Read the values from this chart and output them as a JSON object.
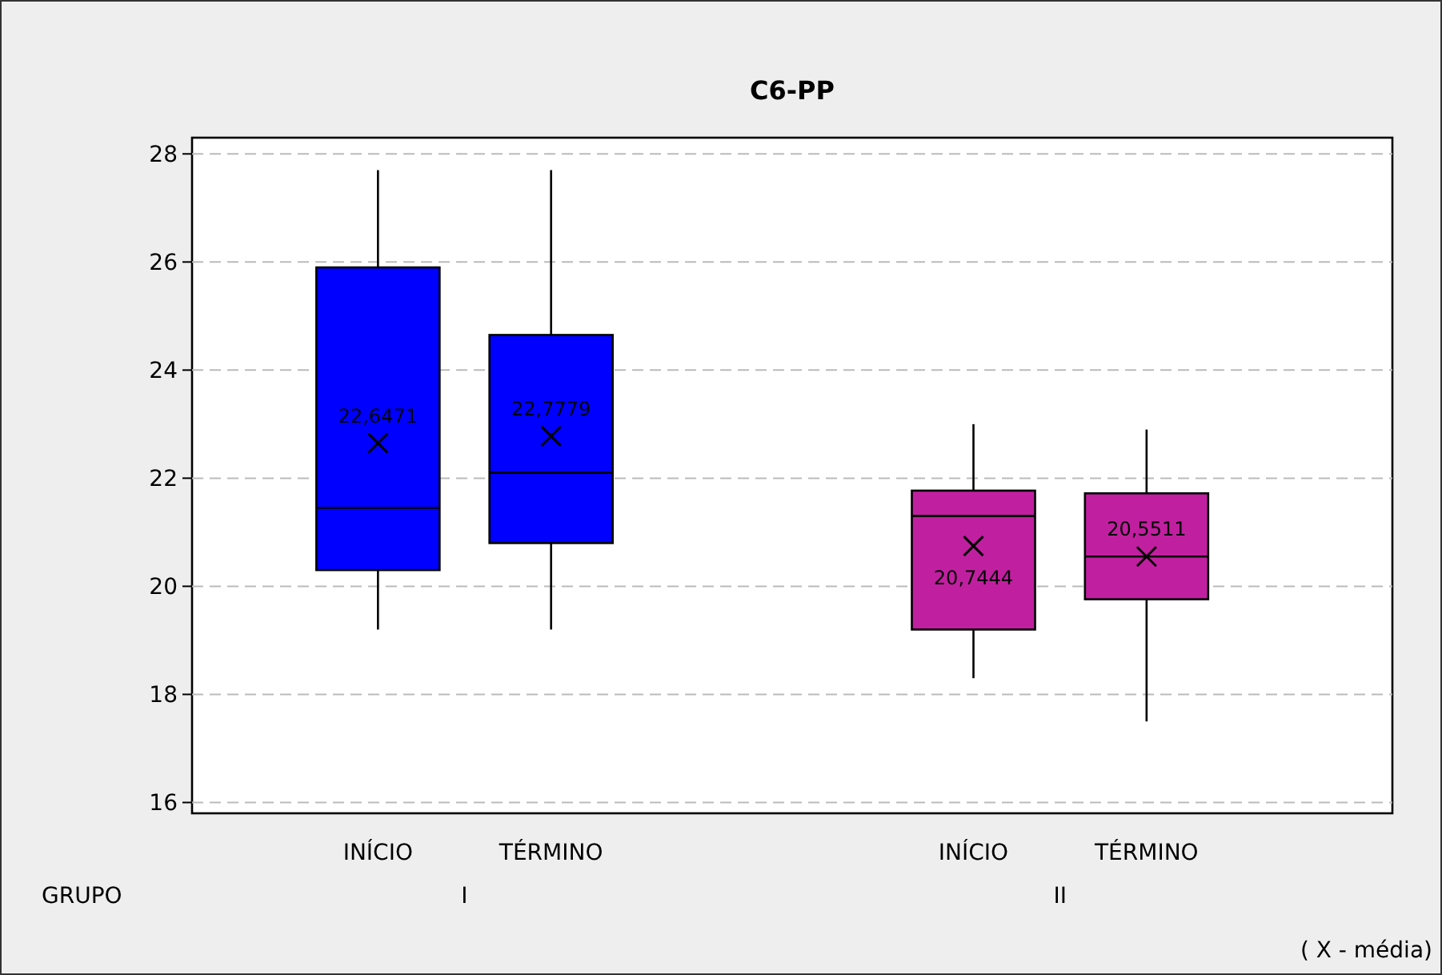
{
  "chart_data": {
    "type": "box",
    "title": "C6-PP",
    "xlabel": "GRUPO",
    "categories": [
      "INÍCIO",
      "TÉRMINO",
      "INÍCIO",
      "TÉRMINO"
    ],
    "series": [
      {
        "color": "#0000ff",
        "boxes": [
          {
            "low": 19.2,
            "q1": 20.3,
            "median": 21.45,
            "q3": 25.9,
            "high": 27.7,
            "mean": 22.6471
          },
          {
            "low": 19.2,
            "q1": 20.8,
            "median": 22.1,
            "q3": 24.65,
            "high": 27.7,
            "mean": 22.7779
          },
          null,
          null
        ],
        "value_labels": [
          "22,6471",
          "22,7779",
          null,
          null
        ]
      },
      {
        "color": "#c020a0",
        "boxes": [
          null,
          null,
          {
            "low": 18.3,
            "q1": 19.2,
            "median": 21.3,
            "q3": 21.77,
            "high": 23.0,
            "mean": 20.7444
          },
          {
            "low": 17.5,
            "q1": 19.76,
            "median": 20.55,
            "q3": 21.72,
            "high": 22.9,
            "mean": 20.5511
          }
        ],
        "value_labels": [
          null,
          null,
          "20,7444",
          "20,5511"
        ]
      }
    ],
    "ylim": [
      15.8,
      28.3
    ],
    "yticks": [
      16,
      18,
      20,
      22,
      24,
      26,
      28
    ],
    "grid": "y",
    "marker": "cross",
    "annotations": [
      "I",
      "II",
      "( X - média)"
    ]
  }
}
